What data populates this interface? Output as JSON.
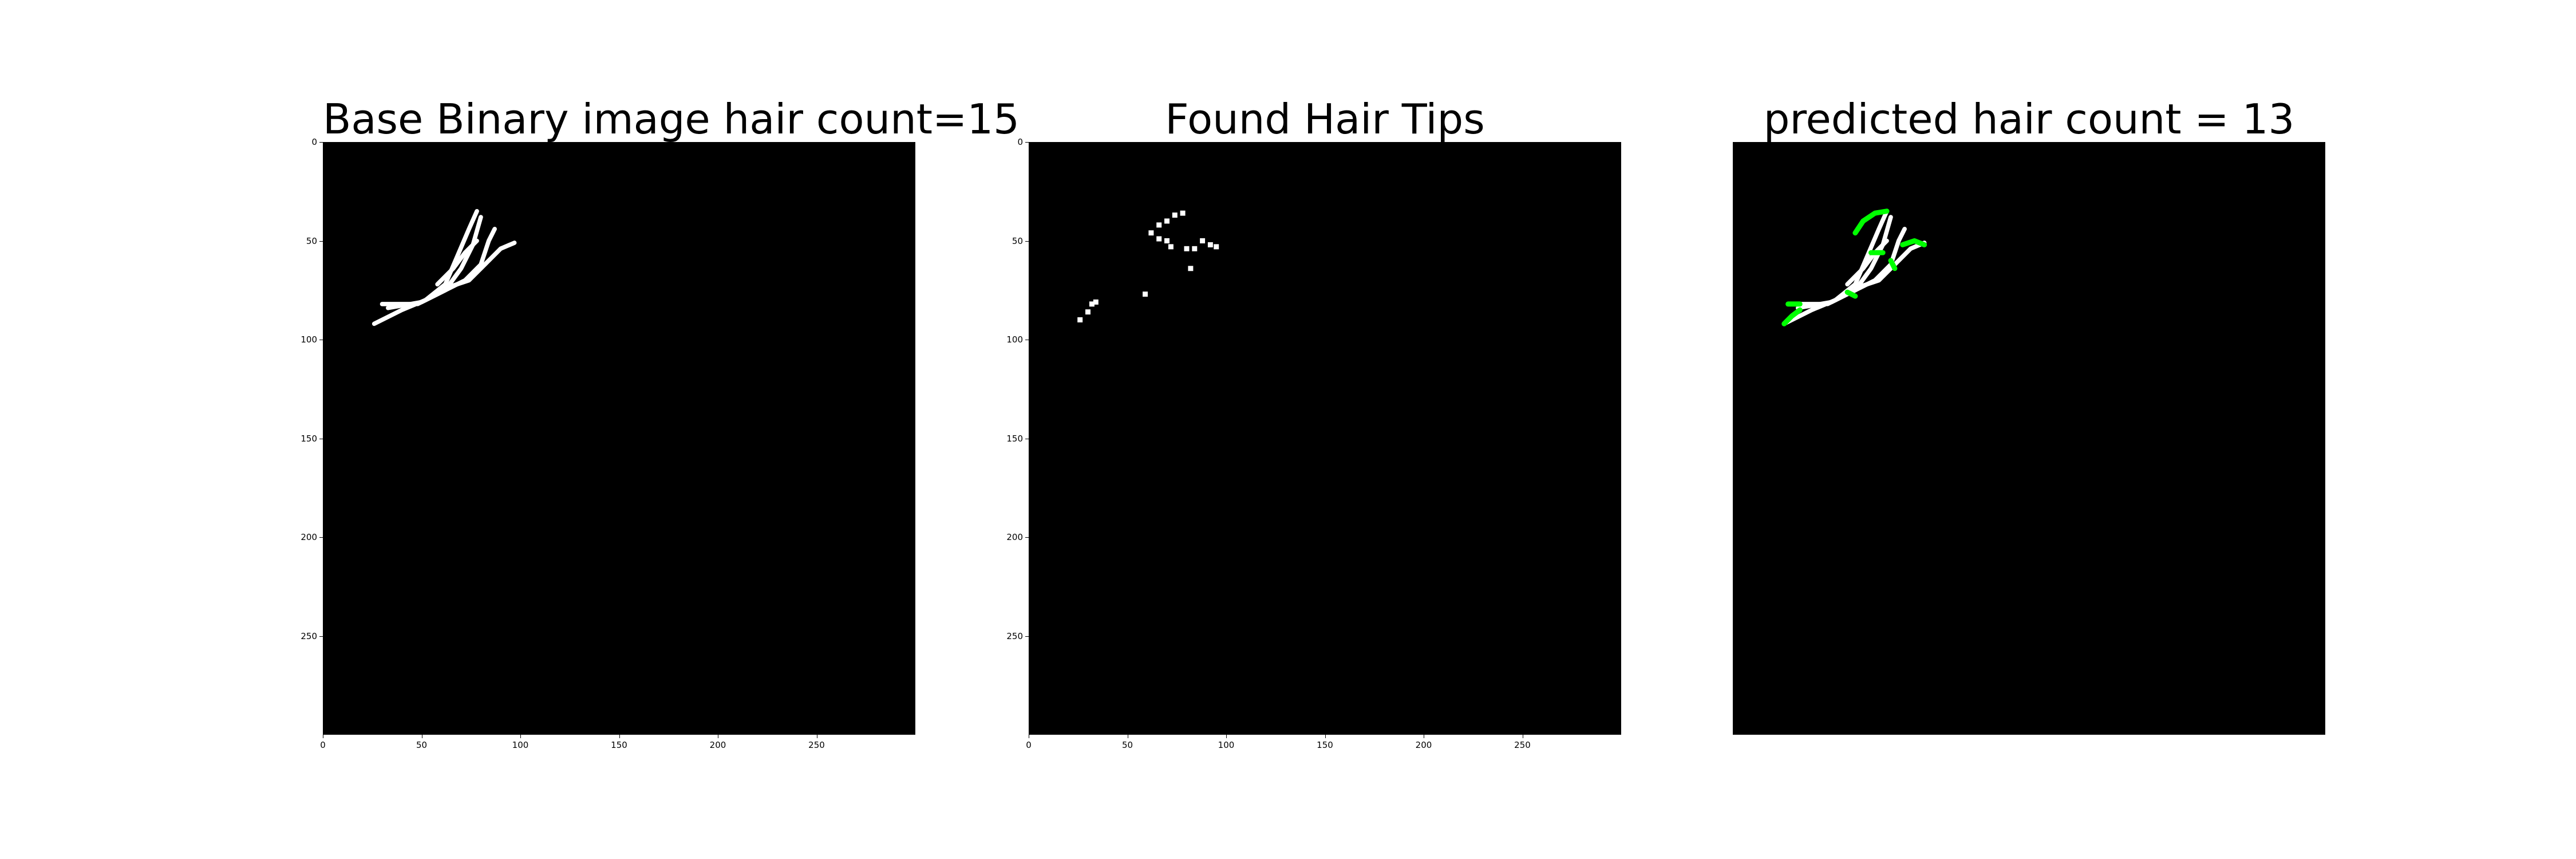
{
  "colors": {
    "background": "#ffffff",
    "axes_background": "#000000",
    "hair": "#ffffff",
    "tip_overlay": "#00ff00"
  },
  "chart_data": [
    {
      "type": "image",
      "title": "Base Binary image hair count=15",
      "xlim": [
        0,
        300
      ],
      "ylim": [
        300,
        0
      ],
      "xticks": [
        "0",
        "50",
        "100",
        "150",
        "200",
        "250"
      ],
      "yticks": [
        "0",
        "50",
        "100",
        "150",
        "200",
        "250"
      ],
      "show_axes": true,
      "strokes": [
        [
          [
            26,
            92
          ],
          [
            40,
            85
          ],
          [
            52,
            80
          ],
          [
            62,
            72
          ],
          [
            68,
            58
          ],
          [
            74,
            44
          ],
          [
            78,
            35
          ]
        ],
        [
          [
            33,
            84
          ],
          [
            50,
            81
          ],
          [
            62,
            75
          ],
          [
            70,
            64
          ],
          [
            76,
            52
          ],
          [
            80,
            38
          ]
        ],
        [
          [
            48,
            82
          ],
          [
            60,
            76
          ],
          [
            72,
            70
          ],
          [
            80,
            62
          ],
          [
            84,
            50
          ],
          [
            87,
            44
          ]
        ],
        [
          [
            62,
            74
          ],
          [
            74,
            70
          ],
          [
            82,
            62
          ],
          [
            90,
            54
          ],
          [
            97,
            51
          ]
        ],
        [
          [
            58,
            72
          ],
          [
            66,
            64
          ],
          [
            72,
            56
          ],
          [
            78,
            50
          ]
        ],
        [
          [
            30,
            82
          ],
          [
            40,
            82
          ],
          [
            46,
            82
          ]
        ]
      ]
    },
    {
      "type": "image",
      "title": "Found Hair Tips",
      "xlim": [
        0,
        300
      ],
      "ylim": [
        300,
        0
      ],
      "xticks": [
        "0",
        "50",
        "100",
        "150",
        "200",
        "250"
      ],
      "yticks": [
        "0",
        "50",
        "100",
        "150",
        "200",
        "250"
      ],
      "show_axes": true,
      "tips": [
        [
          26,
          90
        ],
        [
          30,
          86
        ],
        [
          32,
          82
        ],
        [
          34,
          81
        ],
        [
          59,
          77
        ],
        [
          62,
          46
        ],
        [
          66,
          42
        ],
        [
          70,
          40
        ],
        [
          74,
          37
        ],
        [
          78,
          36
        ],
        [
          66,
          49
        ],
        [
          70,
          50
        ],
        [
          72,
          53
        ],
        [
          80,
          54
        ],
        [
          84,
          54
        ],
        [
          88,
          50
        ],
        [
          92,
          52
        ],
        [
          95,
          53
        ],
        [
          82,
          64
        ]
      ]
    },
    {
      "type": "image",
      "title": "predicted hair count = 13",
      "xlim": [
        0,
        300
      ],
      "ylim": [
        300,
        0
      ],
      "xticks": [],
      "yticks": [],
      "show_axes": false,
      "strokes": [
        [
          [
            26,
            92
          ],
          [
            40,
            85
          ],
          [
            52,
            80
          ],
          [
            62,
            72
          ],
          [
            68,
            58
          ],
          [
            74,
            44
          ],
          [
            78,
            35
          ]
        ],
        [
          [
            33,
            84
          ],
          [
            50,
            81
          ],
          [
            62,
            75
          ],
          [
            70,
            64
          ],
          [
            76,
            52
          ],
          [
            80,
            38
          ]
        ],
        [
          [
            48,
            82
          ],
          [
            60,
            76
          ],
          [
            72,
            70
          ],
          [
            80,
            62
          ],
          [
            84,
            50
          ],
          [
            87,
            44
          ]
        ],
        [
          [
            62,
            74
          ],
          [
            74,
            70
          ],
          [
            82,
            62
          ],
          [
            90,
            54
          ],
          [
            97,
            51
          ]
        ],
        [
          [
            58,
            72
          ],
          [
            66,
            64
          ],
          [
            72,
            56
          ],
          [
            78,
            50
          ]
        ],
        [
          [
            30,
            82
          ],
          [
            40,
            82
          ],
          [
            46,
            82
          ]
        ]
      ],
      "green_segments": [
        [
          [
            26,
            92
          ],
          [
            30,
            88
          ],
          [
            34,
            85
          ]
        ],
        [
          [
            28,
            82
          ],
          [
            34,
            82
          ]
        ],
        [
          [
            62,
            46
          ],
          [
            66,
            40
          ],
          [
            72,
            36
          ],
          [
            78,
            35
          ]
        ],
        [
          [
            86,
            52
          ],
          [
            92,
            50
          ],
          [
            97,
            52
          ]
        ],
        [
          [
            70,
            56
          ],
          [
            76,
            56
          ]
        ],
        [
          [
            80,
            60
          ],
          [
            82,
            64
          ]
        ],
        [
          [
            58,
            76
          ],
          [
            62,
            78
          ]
        ]
      ]
    }
  ]
}
